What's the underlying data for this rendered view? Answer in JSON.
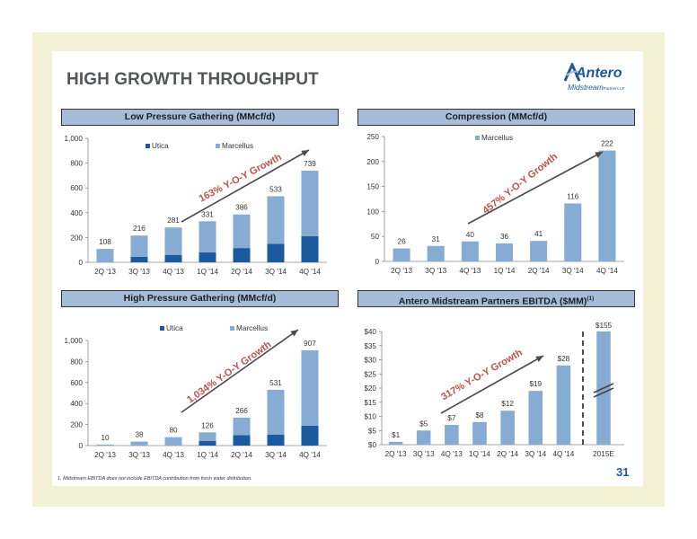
{
  "page": {
    "title": "HIGH GROWTH THROUGHPUT",
    "logo_main": "Antero",
    "logo_sub": "Midstream",
    "logo_suffix": "Partners LP",
    "footnote": "1.  Midstream EBITDA does not include EBITDA contribution from fresh water distribution.",
    "page_number": "31"
  },
  "colors": {
    "utica": "#1c5aa0",
    "marcellus": "#86acd3",
    "panel_header": "#a6bdda",
    "arrow": "#4a4a4a",
    "growth_text": "#c0504d",
    "frame": "#f2f1d6"
  },
  "chart_data": [
    {
      "id": "lpg",
      "type": "bar",
      "stacked": true,
      "title": "Low Pressure Gathering (MMcf/d)",
      "categories": [
        "2Q '13",
        "3Q '13",
        "4Q '13",
        "1Q '14",
        "2Q '14",
        "3Q '14",
        "4Q '14"
      ],
      "series": [
        {
          "name": "Utica",
          "values": [
            0,
            45,
            60,
            80,
            115,
            150,
            210
          ],
          "color": "#1c5aa0"
        },
        {
          "name": "Marcellus",
          "values": [
            108,
            171,
            221,
            251,
            271,
            383,
            529
          ],
          "color": "#86acd3"
        }
      ],
      "totals": [
        "108",
        "216",
        "281",
        "331",
        "386",
        "533",
        "739"
      ],
      "ylim": [
        0,
        1000
      ],
      "yticks": [
        0,
        200,
        400,
        600,
        800,
        1000
      ],
      "ytick_labels": [
        "0",
        "200",
        "400",
        "600",
        "800",
        "1,000"
      ],
      "legend": "top-left",
      "annotation": "163% Y-O-Y Growth"
    },
    {
      "id": "comp",
      "type": "bar",
      "title": "Compression (MMcf/d)",
      "categories": [
        "2Q '13",
        "3Q '13",
        "4Q '13",
        "1Q '14",
        "2Q '14",
        "3Q '14",
        "4Q '14"
      ],
      "series": [
        {
          "name": "Marcellus",
          "values": [
            26,
            31,
            40,
            36,
            41,
            116,
            222
          ],
          "color": "#86acd3"
        }
      ],
      "totals": [
        "26",
        "31",
        "40",
        "36",
        "41",
        "116",
        "222"
      ],
      "ylim": [
        0,
        250
      ],
      "yticks": [
        0,
        50,
        100,
        150,
        200,
        250
      ],
      "ytick_labels": [
        "0",
        "50",
        "100",
        "150",
        "200",
        "250"
      ],
      "legend": "top-left",
      "annotation": "457% Y-O-Y Growth"
    },
    {
      "id": "hpg",
      "type": "bar",
      "stacked": true,
      "title": "High Pressure Gathering (MMcf/d)",
      "categories": [
        "2Q '13",
        "3Q '13",
        "4Q '13",
        "1Q '14",
        "2Q '14",
        "3Q '14",
        "4Q '14"
      ],
      "series": [
        {
          "name": "Utica",
          "values": [
            0,
            0,
            0,
            45,
            100,
            105,
            190
          ],
          "color": "#1c5aa0"
        },
        {
          "name": "Marcellus",
          "values": [
            10,
            38,
            80,
            81,
            166,
            426,
            717
          ],
          "color": "#86acd3"
        }
      ],
      "totals": [
        "10",
        "38",
        "80",
        "126",
        "266",
        "531",
        "907"
      ],
      "ylim": [
        0,
        1000
      ],
      "yticks": [
        0,
        200,
        400,
        600,
        800,
        1000
      ],
      "ytick_labels": [
        "0",
        "200",
        "400",
        "600",
        "800",
        "1,000"
      ],
      "legend": "top-left",
      "annotation": "1,034% Y-O-Y Growth"
    },
    {
      "id": "ebitda",
      "type": "bar",
      "title": "Antero Midstream Partners EBITDA ($MM)",
      "title_sup": "(1)",
      "categories": [
        "2Q '13",
        "3Q '13",
        "4Q '13",
        "1Q '14",
        "2Q '14",
        "3Q '14",
        "4Q '14",
        "2015E"
      ],
      "series": [
        {
          "values": [
            1,
            5,
            7,
            8,
            12,
            19,
            28,
            155
          ],
          "color": "#86acd3"
        }
      ],
      "totals": [
        "$1",
        "$5",
        "$7",
        "$8",
        "$12",
        "$19",
        "$28",
        "$155"
      ],
      "ylim": [
        0,
        40
      ],
      "yticks": [
        0,
        5,
        10,
        15,
        20,
        25,
        30,
        35,
        40
      ],
      "ytick_labels": [
        "$0",
        "$5",
        "$10",
        "$15",
        "$20",
        "$25",
        "$30",
        "$35",
        "$40"
      ],
      "axis_break": "2015E",
      "annotation": "317% Y-O-Y Growth"
    }
  ]
}
